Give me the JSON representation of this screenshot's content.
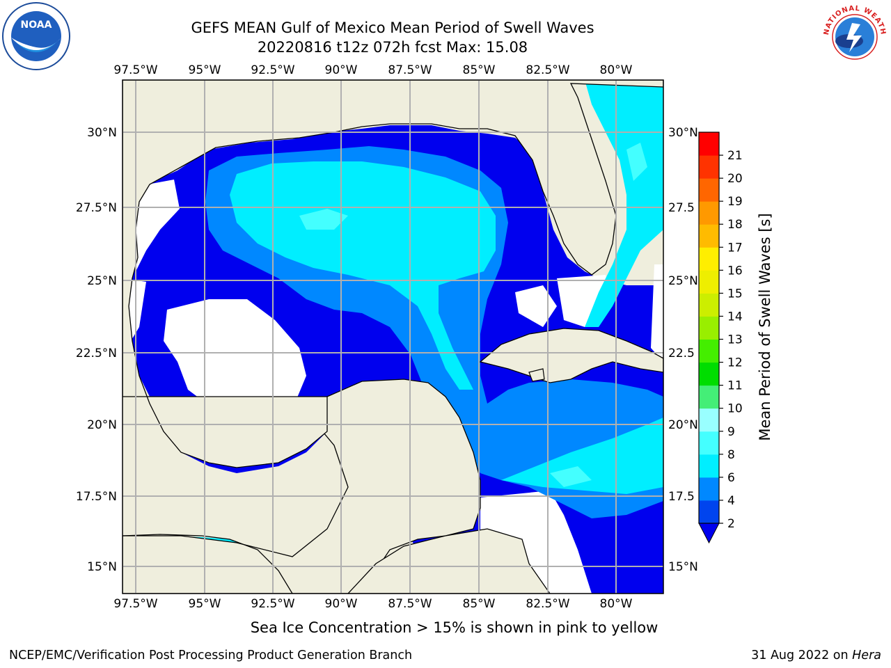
{
  "header": {
    "title_line1": "GEFS MEAN Gulf of Mexico Mean Period of Swell Waves",
    "title_line2": "20220816 t12z 072h fcst   Max: 15.08"
  },
  "logos": {
    "left": "NOAA",
    "right": "NATIONAL WEATHER SERVICE"
  },
  "map": {
    "lon_labels": [
      "97.5°W",
      "95°W",
      "92.5°W",
      "90°W",
      "87.5°W",
      "85°W",
      "82.5°W",
      "80°W"
    ],
    "lat_labels_left": [
      "30°N",
      "27.5°N",
      "25°N",
      "22.5°N",
      "20°N",
      "17.5°N",
      "15°N"
    ],
    "lat_labels_right": [
      "30°N",
      "27.5",
      "25°N",
      "22.5",
      "20°N",
      "17.5",
      "15°N"
    ],
    "colors": {
      "land": "#efeedd",
      "coast": "#000000",
      "grid": "#b0b0b0",
      "no_data": "#ffffff"
    }
  },
  "colorbar": {
    "label": "Mean Period of Swell Waves [s]",
    "ticks": [
      "2",
      "4",
      "6",
      "8",
      "9",
      "10",
      "11",
      "12",
      "13",
      "14",
      "15",
      "16",
      "17",
      "18",
      "19",
      "20",
      "21"
    ],
    "colors": [
      "#0044ee",
      "#0088ff",
      "#00eeff",
      "#44ffff",
      "#99ffff",
      "#44ee77",
      "#00dd00",
      "#44ee00",
      "#99ee00",
      "#ccee00",
      "#eeee00",
      "#ffee00",
      "#ffbb00",
      "#ff9900",
      "#ff6600",
      "#ff3300",
      "#ff0000"
    ],
    "extend_color": "#0000ee"
  },
  "caption": "Sea Ice Concentration > 15% is shown in pink to yellow",
  "footer": {
    "left": "NCEP/EMC/Verification Post Processing Product Generation Branch",
    "right_date": "31 Aug 2022 on ",
    "right_host": "Hera"
  }
}
